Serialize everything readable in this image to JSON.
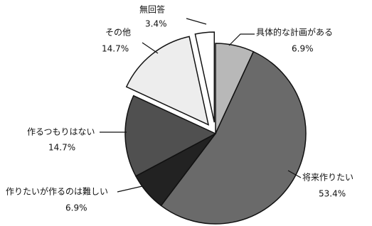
{
  "chart_data": {
    "type": "pie",
    "categories": [
      "具体的な計画がある",
      "将来作りたい",
      "作りたいが作るのは難しい",
      "作るつもりはない",
      "その他",
      "無回答"
    ],
    "values": [
      6.9,
      53.4,
      6.9,
      14.7,
      14.7,
      3.4
    ],
    "value_labels": [
      "6.9%",
      "53.4%",
      "6.9%",
      "14.7%",
      "14.7%",
      "3.4%"
    ],
    "colors": [
      "#b8b8b8",
      "#6a6a6a",
      "#222222",
      "#505050",
      "#ededed",
      "#ffffff"
    ],
    "exploded": [
      false,
      false,
      false,
      false,
      true,
      true
    ]
  }
}
